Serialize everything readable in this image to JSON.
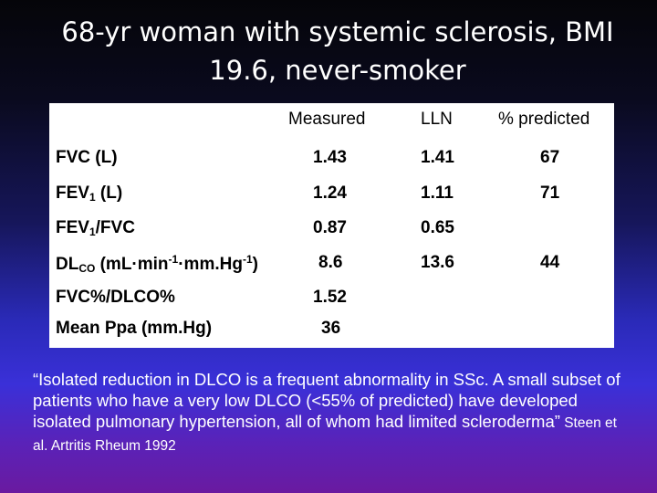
{
  "title": "68-yr woman with systemic sclerosis, BMI 19.6, never-smoker",
  "table": {
    "headers": [
      "Measured",
      "LLN",
      "% predicted"
    ],
    "rows": [
      {
        "label": "FVC (L)",
        "measured": "1.43",
        "lln": "1.41",
        "predicted": "67"
      },
      {
        "label_main": "FEV",
        "label_sub": "1",
        "label_rest": " (L)",
        "measured": "1.24",
        "lln": "1.11",
        "predicted": "71"
      },
      {
        "label_main": "FEV",
        "label_sub": "1",
        "label_rest": "/FVC",
        "measured": "0.87",
        "lln": "0.65",
        "predicted": ""
      },
      {
        "label_main": "DL",
        "label_sub": "CO",
        "label_a": " (mL·min",
        "label_sup1": "-1",
        "label_b": "·mm.Hg",
        "label_sup2": "-1",
        "label_c": ")",
        "measured": "8.6",
        "lln": "13.6",
        "predicted": "44"
      },
      {
        "label": "FVC%/DLCO%",
        "measured": "1.52",
        "lln": "",
        "predicted": ""
      },
      {
        "label": "Mean Ppa (mm.Hg)",
        "measured": "36",
        "lln": "",
        "predicted": ""
      }
    ]
  },
  "quote": {
    "text": "“Isolated reduction in DLCO is a frequent abnormality in SSc. A small subset of patients who have a very low DLCO (<55% of predicted) have developed isolated pulmonary hypertension, all of whom had limited scleroderma”",
    "citation": " Steen et al. Artritis Rheum 1992"
  }
}
